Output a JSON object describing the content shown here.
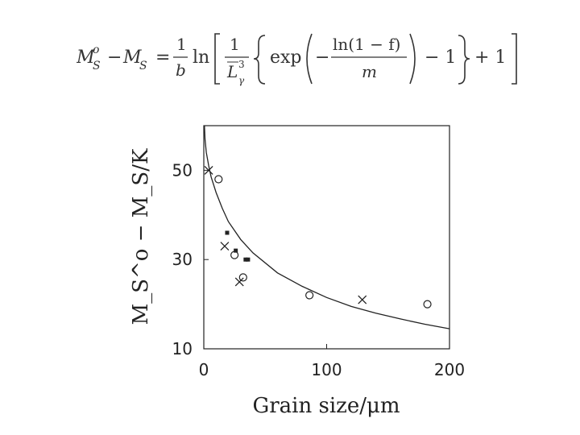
{
  "equation": {
    "lhs": "M",
    "lhs_sup": "o",
    "lhs_sub": "S",
    "minus": "−",
    "rhs_sym": "M",
    "rhs_sub": "S",
    "equals": "=",
    "frac1_num": "1",
    "frac1_den": "b",
    "ln": "ln",
    "frac2_num": "1",
    "frac2_den": "L",
    "frac2_den_sup": "3",
    "frac2_den_sub": "γ",
    "exp": "exp",
    "frac3_num": "ln(1 − f)",
    "frac3_den": "m",
    "minus_one": "− 1",
    "plus_one": "+ 1",
    "neg": "−"
  },
  "chart_data": {
    "type": "scatter",
    "xlabel": "Grain size/μm",
    "ylabel": "M_S^o − M_S/K",
    "xlim": [
      0,
      200
    ],
    "ylim": [
      10,
      60
    ],
    "x_ticks": [
      0,
      100,
      200
    ],
    "x_tick_labels": [
      "0",
      "100",
      "200"
    ],
    "y_ticks": [
      10,
      30,
      50
    ],
    "y_tick_labels": [
      "10",
      "30",
      "50"
    ],
    "grid": false,
    "series": [
      {
        "marker": "circle",
        "points": [
          [
            12,
            48
          ],
          [
            25,
            31
          ],
          [
            32,
            26
          ],
          [
            86,
            22
          ],
          [
            182,
            20
          ]
        ]
      },
      {
        "marker": "cross",
        "points": [
          [
            4,
            50
          ],
          [
            17,
            33
          ],
          [
            29,
            25
          ],
          [
            129,
            21
          ]
        ]
      },
      {
        "marker": "square",
        "points": [
          [
            19,
            36
          ],
          [
            26,
            32
          ],
          [
            34,
            30
          ],
          [
            36,
            30
          ]
        ]
      }
    ],
    "curve": {
      "points": [
        [
          0.5,
          60
        ],
        [
          1,
          57
        ],
        [
          2,
          54
        ],
        [
          4,
          51
        ],
        [
          6,
          48.5
        ],
        [
          10,
          45
        ],
        [
          15,
          41.5
        ],
        [
          20,
          38.5
        ],
        [
          30,
          34.5
        ],
        [
          40,
          31.5
        ],
        [
          60,
          27
        ],
        [
          80,
          24
        ],
        [
          100,
          21.5
        ],
        [
          120,
          19.5
        ],
        [
          140,
          18
        ],
        [
          160,
          16.7
        ],
        [
          180,
          15.5
        ],
        [
          200,
          14.5
        ]
      ]
    }
  }
}
